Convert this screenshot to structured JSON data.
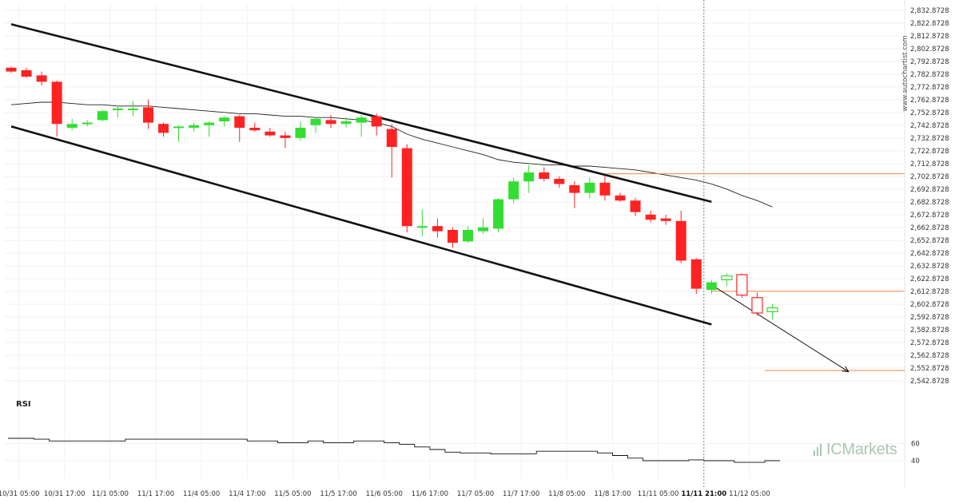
{
  "chart_data": {
    "type": "candlestick",
    "watermark": "www.autochartist.com",
    "brand": "ICMarkets",
    "y_axis": {
      "range": [
        2537.8728,
        2837.8728
      ],
      "ticks": [
        "2,542.8728",
        "2,552.8728",
        "2,562.8728",
        "2,572.8728",
        "2,582.8728",
        "2,592.8728",
        "2,602.8728",
        "2,612.8728",
        "2,622.8728",
        "2,632.8728",
        "2,642.8728",
        "2,652.8728",
        "2,662.8728",
        "2,672.8728",
        "2,682.8728",
        "2,692.8728",
        "2,702.8728",
        "2,712.8728",
        "2,722.8728",
        "2,732.8728",
        "2,742.8728",
        "2,752.8728",
        "2,762.8728",
        "2,772.8728",
        "2,782.8728",
        "2,792.8728",
        "2,802.8728",
        "2,812.8728",
        "2,822.8728",
        "2,832.8728"
      ]
    },
    "x_axis": {
      "ticks": [
        {
          "i": 0.5,
          "label": "10/31 05:00"
        },
        {
          "i": 3.5,
          "label": "10/31 17:00"
        },
        {
          "i": 6.5,
          "label": "11/1 05:00"
        },
        {
          "i": 9.5,
          "label": "11/1 17:00"
        },
        {
          "i": 12.5,
          "label": "11/4 05:00"
        },
        {
          "i": 15.5,
          "label": "11/4 17:00"
        },
        {
          "i": 18.5,
          "label": "11/5 05:00"
        },
        {
          "i": 21.5,
          "label": "11/5 17:00"
        },
        {
          "i": 24.5,
          "label": "11/6 05:00"
        },
        {
          "i": 27.5,
          "label": "11/6 17:00"
        },
        {
          "i": 30.5,
          "label": "11/7 05:00"
        },
        {
          "i": 33.5,
          "label": "11/7 17:00"
        },
        {
          "i": 36.5,
          "label": "11/8 05:00"
        },
        {
          "i": 39.5,
          "label": "11/8 17:00"
        },
        {
          "i": 42.5,
          "label": "11/11 05:00"
        },
        {
          "i": 45.5,
          "label": "11/11 21:00",
          "bold": true
        },
        {
          "i": 48.5,
          "label": "11/12 05:00"
        }
      ]
    },
    "candles": [
      {
        "o": 2788,
        "h": 2789,
        "l": 2784,
        "c": 2785
      },
      {
        "o": 2786,
        "h": 2788,
        "l": 2780,
        "c": 2781
      },
      {
        "o": 2782,
        "h": 2785,
        "l": 2774,
        "c": 2777
      },
      {
        "o": 2777,
        "h": 2778,
        "l": 2734,
        "c": 2744
      },
      {
        "o": 2741,
        "h": 2748,
        "l": 2739,
        "c": 2744
      },
      {
        "o": 2744,
        "h": 2747,
        "l": 2742,
        "c": 2745
      },
      {
        "o": 2747,
        "h": 2755,
        "l": 2746,
        "c": 2754
      },
      {
        "o": 2755,
        "h": 2758,
        "l": 2749,
        "c": 2756
      },
      {
        "o": 2756,
        "h": 2762,
        "l": 2750,
        "c": 2756
      },
      {
        "o": 2757,
        "h": 2763,
        "l": 2740,
        "c": 2745
      },
      {
        "o": 2744,
        "h": 2745,
        "l": 2734,
        "c": 2737
      },
      {
        "o": 2742,
        "h": 2743,
        "l": 2730,
        "c": 2742
      },
      {
        "o": 2741,
        "h": 2745,
        "l": 2738,
        "c": 2743
      },
      {
        "o": 2743,
        "h": 2746,
        "l": 2734,
        "c": 2745
      },
      {
        "o": 2746,
        "h": 2750,
        "l": 2742,
        "c": 2749
      },
      {
        "o": 2750,
        "h": 2751,
        "l": 2730,
        "c": 2741
      },
      {
        "o": 2741,
        "h": 2745,
        "l": 2738,
        "c": 2739
      },
      {
        "o": 2738,
        "h": 2741,
        "l": 2734,
        "c": 2735
      },
      {
        "o": 2735,
        "h": 2738,
        "l": 2725,
        "c": 2733
      },
      {
        "o": 2733,
        "h": 2746,
        "l": 2731,
        "c": 2741
      },
      {
        "o": 2743,
        "h": 2749,
        "l": 2737,
        "c": 2748
      },
      {
        "o": 2747,
        "h": 2751,
        "l": 2741,
        "c": 2744
      },
      {
        "o": 2744,
        "h": 2749,
        "l": 2741,
        "c": 2746
      },
      {
        "o": 2745,
        "h": 2751,
        "l": 2734,
        "c": 2749
      },
      {
        "o": 2750,
        "h": 2752,
        "l": 2735,
        "c": 2742
      },
      {
        "o": 2740,
        "h": 2744,
        "l": 2702,
        "c": 2726
      },
      {
        "o": 2725,
        "h": 2728,
        "l": 2659,
        "c": 2664
      },
      {
        "o": 2664,
        "h": 2677,
        "l": 2656,
        "c": 2664
      },
      {
        "o": 2664,
        "h": 2670,
        "l": 2655,
        "c": 2660
      },
      {
        "o": 2661,
        "h": 2663,
        "l": 2647,
        "c": 2651
      },
      {
        "o": 2652,
        "h": 2664,
        "l": 2651,
        "c": 2661
      },
      {
        "o": 2660,
        "h": 2670,
        "l": 2658,
        "c": 2663
      },
      {
        "o": 2662,
        "h": 2686,
        "l": 2659,
        "c": 2685
      },
      {
        "o": 2685,
        "h": 2702,
        "l": 2682,
        "c": 2699
      },
      {
        "o": 2699,
        "h": 2712,
        "l": 2690,
        "c": 2706
      },
      {
        "o": 2706,
        "h": 2710,
        "l": 2699,
        "c": 2701
      },
      {
        "o": 2701,
        "h": 2703,
        "l": 2694,
        "c": 2697
      },
      {
        "o": 2696,
        "h": 2699,
        "l": 2678,
        "c": 2690
      },
      {
        "o": 2690,
        "h": 2702,
        "l": 2686,
        "c": 2698
      },
      {
        "o": 2698,
        "h": 2703,
        "l": 2684,
        "c": 2688
      },
      {
        "o": 2688,
        "h": 2690,
        "l": 2683,
        "c": 2684
      },
      {
        "o": 2684,
        "h": 2686,
        "l": 2672,
        "c": 2675
      },
      {
        "o": 2673,
        "h": 2676,
        "l": 2667,
        "c": 2669
      },
      {
        "o": 2670,
        "h": 2673,
        "l": 2665,
        "c": 2668
      },
      {
        "o": 2668,
        "h": 2676,
        "l": 2635,
        "c": 2637
      },
      {
        "o": 2638,
        "h": 2639,
        "l": 2611,
        "c": 2615
      },
      {
        "o": 2614,
        "h": 2622,
        "l": 2611,
        "c": 2620
      },
      {
        "o": 2622,
        "h": 2627,
        "l": 2617,
        "c": 2625
      },
      {
        "o": 2626,
        "h": 2627,
        "l": 2608,
        "c": 2610
      },
      {
        "o": 2608,
        "h": 2612,
        "l": 2594,
        "c": 2596
      },
      {
        "o": 2597,
        "h": 2603,
        "l": 2591,
        "c": 2600
      }
    ],
    "moving_average": [
      2759,
      2760,
      2761,
      2761,
      2760,
      2759,
      2759,
      2758,
      2758,
      2758,
      2757,
      2756,
      2755,
      2754,
      2753,
      2752,
      2752,
      2751,
      2750,
      2750,
      2749,
      2749,
      2748,
      2747,
      2745,
      2742,
      2736,
      2732,
      2729,
      2726,
      2723,
      2720,
      2716,
      2714,
      2713,
      2712,
      2712,
      2711,
      2711,
      2710,
      2709,
      2708,
      2706,
      2704,
      2702,
      2700,
      2697,
      2693,
      2688,
      2684,
      2679
    ],
    "channel": {
      "upper": [
        {
          "i": 0,
          "v": 2822
        },
        {
          "i": 46,
          "v": 2683
        }
      ],
      "lower": [
        {
          "i": 0,
          "v": 2742
        },
        {
          "i": 46,
          "v": 2587
        }
      ]
    },
    "resistance": {
      "value": 2705,
      "from": 39
    },
    "support_levels": [
      {
        "value": 2613,
        "from": 46
      },
      {
        "value": 2551,
        "from": 49.5
      }
    ],
    "projection": {
      "from": {
        "i": 46,
        "v": 2618
      },
      "to": {
        "i": 55,
        "v": 2550
      }
    },
    "current_marker": 45.5,
    "rsi": {
      "title": "RSI",
      "ticks": [
        40,
        60
      ],
      "values": [
        66,
        66,
        65,
        63,
        63,
        63,
        63,
        63,
        65,
        65,
        65,
        65,
        65,
        65,
        65,
        65,
        63,
        63,
        61,
        61,
        63,
        61,
        61,
        63,
        63,
        61,
        59,
        56,
        53,
        50,
        49,
        49,
        48,
        48,
        48,
        51,
        51,
        51,
        51,
        49,
        46,
        43,
        40,
        40,
        40,
        41,
        40,
        40,
        38,
        38,
        40
      ]
    }
  }
}
